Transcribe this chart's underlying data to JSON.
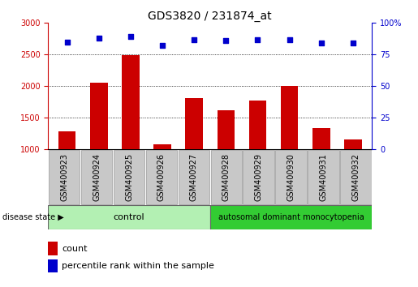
{
  "title": "GDS3820 / 231874_at",
  "samples": [
    "GSM400923",
    "GSM400924",
    "GSM400925",
    "GSM400926",
    "GSM400927",
    "GSM400928",
    "GSM400929",
    "GSM400930",
    "GSM400931",
    "GSM400932"
  ],
  "counts": [
    1280,
    2050,
    2490,
    1080,
    1810,
    1620,
    1770,
    2000,
    1330,
    1150
  ],
  "percentile_ranks": [
    85,
    88,
    89,
    82,
    87,
    86,
    87,
    87,
    84,
    84
  ],
  "ylim_left": [
    1000,
    3000
  ],
  "ylim_right": [
    0,
    100
  ],
  "yticks_left": [
    1000,
    1500,
    2000,
    2500,
    3000
  ],
  "yticks_right": [
    0,
    25,
    50,
    75,
    100
  ],
  "bar_color": "#cc0000",
  "scatter_color": "#0000cc",
  "control_color_light": "#b3f0b3",
  "disease_color_dark": "#33cc33",
  "control_samples": 5,
  "disease_label": "autosomal dominant monocytopenia",
  "control_label": "control",
  "disease_state_label": "disease state",
  "legend_count_label": "count",
  "legend_pct_label": "percentile rank within the sample",
  "ylabel_left_color": "#cc0000",
  "ylabel_right_color": "#0000cc",
  "title_fontsize": 10,
  "tick_fontsize": 7,
  "label_fontsize": 8,
  "xtick_bg_color": "#c8c8c8",
  "border_color": "#000000"
}
